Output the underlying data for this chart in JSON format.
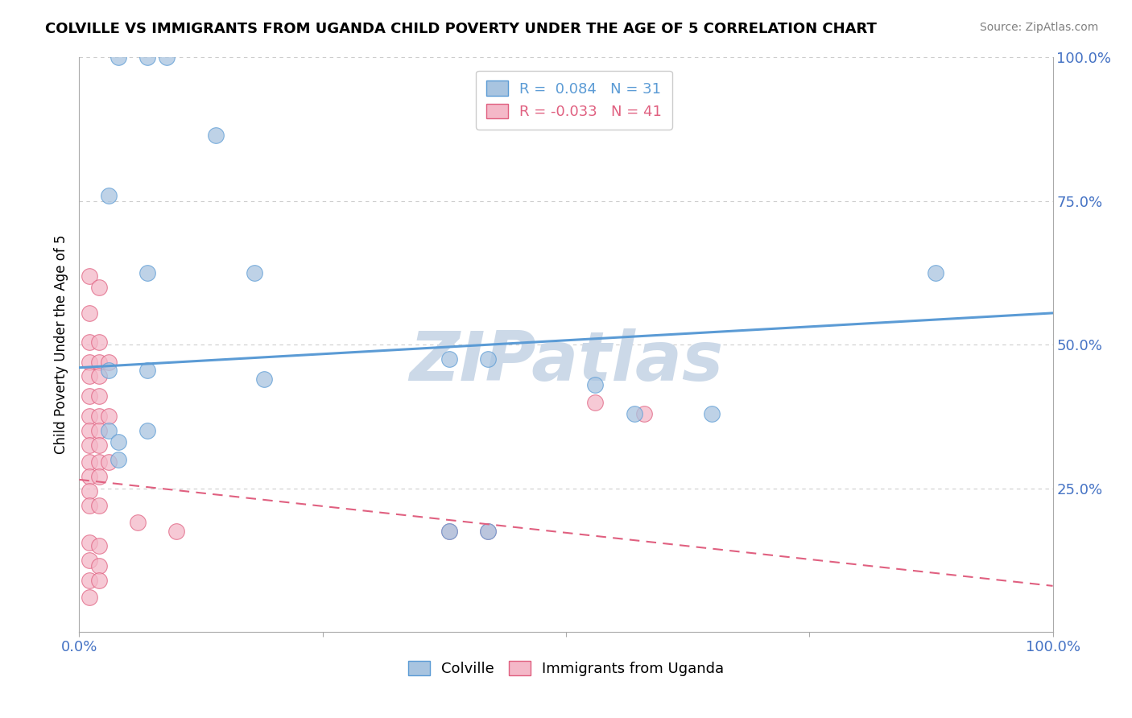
{
  "title": "COLVILLE VS IMMIGRANTS FROM UGANDA CHILD POVERTY UNDER THE AGE OF 5 CORRELATION CHART",
  "source": "Source: ZipAtlas.com",
  "ylabel": "Child Poverty Under the Age of 5",
  "xlim": [
    0.0,
    1.0
  ],
  "ylim": [
    0.0,
    1.0
  ],
  "colville_R": 0.084,
  "colville_N": 31,
  "uganda_R": -0.033,
  "uganda_N": 41,
  "colville_color": "#a8c4e0",
  "colville_line_color": "#5b9bd5",
  "uganda_color": "#f4b8c8",
  "uganda_line_color": "#e06080",
  "colville_points": [
    [
      0.04,
      1.0
    ],
    [
      0.07,
      1.0
    ],
    [
      0.09,
      1.0
    ],
    [
      0.14,
      0.865
    ],
    [
      0.03,
      0.76
    ],
    [
      0.07,
      0.625
    ],
    [
      0.18,
      0.625
    ],
    [
      0.88,
      0.625
    ],
    [
      0.38,
      0.475
    ],
    [
      0.42,
      0.475
    ],
    [
      0.03,
      0.455
    ],
    [
      0.07,
      0.455
    ],
    [
      0.19,
      0.44
    ],
    [
      0.53,
      0.43
    ],
    [
      0.57,
      0.38
    ],
    [
      0.65,
      0.38
    ],
    [
      0.03,
      0.35
    ],
    [
      0.07,
      0.35
    ],
    [
      0.04,
      0.33
    ],
    [
      0.04,
      0.3
    ],
    [
      0.38,
      0.175
    ],
    [
      0.42,
      0.175
    ]
  ],
  "uganda_points": [
    [
      0.01,
      0.62
    ],
    [
      0.02,
      0.6
    ],
    [
      0.01,
      0.555
    ],
    [
      0.01,
      0.505
    ],
    [
      0.02,
      0.505
    ],
    [
      0.01,
      0.47
    ],
    [
      0.02,
      0.47
    ],
    [
      0.03,
      0.47
    ],
    [
      0.01,
      0.445
    ],
    [
      0.02,
      0.445
    ],
    [
      0.01,
      0.41
    ],
    [
      0.02,
      0.41
    ],
    [
      0.01,
      0.375
    ],
    [
      0.02,
      0.375
    ],
    [
      0.03,
      0.375
    ],
    [
      0.01,
      0.35
    ],
    [
      0.02,
      0.35
    ],
    [
      0.01,
      0.325
    ],
    [
      0.02,
      0.325
    ],
    [
      0.01,
      0.295
    ],
    [
      0.02,
      0.295
    ],
    [
      0.03,
      0.295
    ],
    [
      0.01,
      0.27
    ],
    [
      0.02,
      0.27
    ],
    [
      0.01,
      0.245
    ],
    [
      0.01,
      0.22
    ],
    [
      0.02,
      0.22
    ],
    [
      0.06,
      0.19
    ],
    [
      0.1,
      0.175
    ],
    [
      0.01,
      0.155
    ],
    [
      0.02,
      0.15
    ],
    [
      0.01,
      0.125
    ],
    [
      0.02,
      0.115
    ],
    [
      0.01,
      0.09
    ],
    [
      0.02,
      0.09
    ],
    [
      0.01,
      0.06
    ],
    [
      0.53,
      0.4
    ],
    [
      0.58,
      0.38
    ],
    [
      0.38,
      0.175
    ],
    [
      0.42,
      0.175
    ]
  ],
  "background_color": "#ffffff",
  "grid_color": "#cccccc",
  "watermark_text": "ZIPatlas",
  "watermark_color": "#ccd9e8",
  "colville_trendline": [
    0.0,
    0.46,
    1.0,
    0.555
  ],
  "uganda_trendline": [
    0.0,
    0.265,
    1.0,
    0.08
  ]
}
